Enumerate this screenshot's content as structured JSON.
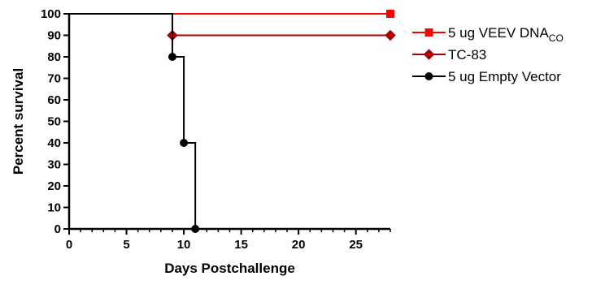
{
  "chart_data": {
    "type": "line",
    "step": true,
    "title": "",
    "xlabel": "Days Postchallenge",
    "ylabel": "Percent survival",
    "xlim": [
      0,
      28
    ],
    "ylim": [
      0,
      100
    ],
    "x_ticks": [
      0,
      5,
      10,
      15,
      20,
      25
    ],
    "y_ticks": [
      0,
      10,
      20,
      30,
      40,
      50,
      60,
      70,
      80,
      90,
      100
    ],
    "x_minor_step": 1,
    "grid": false,
    "legend_position": "right",
    "series": [
      {
        "name": "5 ug VEEV DNA",
        "name_subscript": "CO",
        "color": "#ff0000",
        "marker": "square",
        "x": [
          0,
          28
        ],
        "y": [
          100,
          100
        ],
        "marker_x": [
          28
        ],
        "marker_y": [
          100
        ]
      },
      {
        "name": "TC-83",
        "color": "#aa0000",
        "marker": "diamond",
        "x": [
          0,
          9,
          28
        ],
        "y": [
          100,
          90,
          90
        ],
        "marker_x": [
          9,
          28
        ],
        "marker_y": [
          90,
          90
        ]
      },
      {
        "name": "5 ug Empty Vector",
        "color": "#000000",
        "marker": "circle",
        "x": [
          0,
          9,
          10,
          11
        ],
        "y": [
          100,
          80,
          40,
          0
        ],
        "marker_x": [
          9,
          10,
          11
        ],
        "marker_y": [
          80,
          40,
          0
        ]
      }
    ]
  }
}
